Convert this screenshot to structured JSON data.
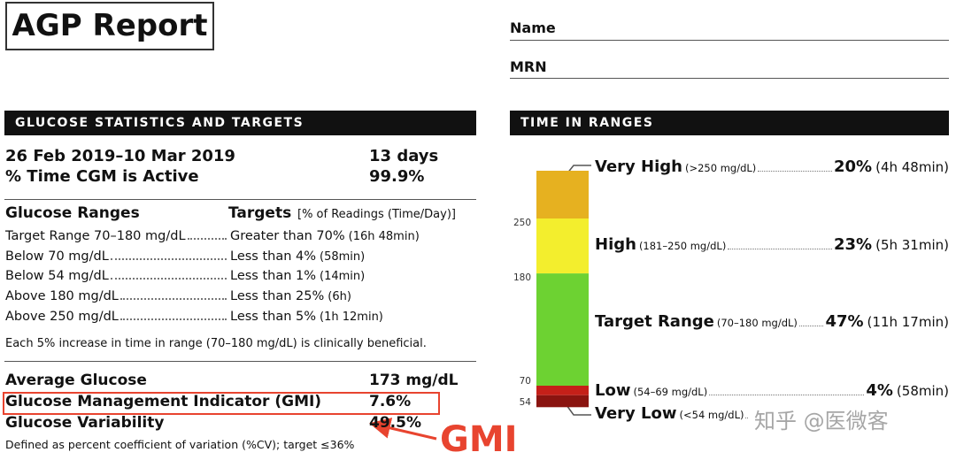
{
  "header": {
    "title": "AGP Report",
    "name_label": "Name",
    "mrn_label": "MRN"
  },
  "glucose_stats": {
    "heading": "GLUCOSE STATISTICS AND TARGETS",
    "date_range": "26 Feb 2019–10 Mar 2019",
    "days": "13 days",
    "cgm_active_label": "% Time CGM is Active",
    "cgm_active": "99.9%",
    "ranges_heading": "Glucose Ranges",
    "targets_heading": "Targets",
    "targets_note": "[% of Readings (Time/Day)]",
    "rows": [
      {
        "range": "Target Range 70–180 mg/dL",
        "target": "Greater than 70%",
        "time": "(16h 48min)"
      },
      {
        "range": "Below 70 mg/dL",
        "target": "Less than 4%",
        "time": "(58min)"
      },
      {
        "range": "Below 54 mg/dL",
        "target": "Less than 1%",
        "time": "(14min)"
      },
      {
        "range": "Above 180 mg/dL",
        "target": "Less than 25%",
        "time": "(6h)"
      },
      {
        "range": "Above 250 mg/dL",
        "target": "Less than 5%",
        "time": "(1h 12min)"
      }
    ],
    "note": "Each 5% increase in time in range (70–180 mg/dL) is clinically beneficial.",
    "metrics": [
      {
        "label": "Average Glucose",
        "value": "173 mg/dL"
      },
      {
        "label": "Glucose Management Indicator (GMI)",
        "value": "7.6%"
      },
      {
        "label": "Glucose Variability",
        "value": "49.5%"
      }
    ],
    "variability_note": "Defined as percent coefficient of variation (%CV); target ≤36%",
    "annotation": "GMI"
  },
  "time_in_ranges": {
    "heading": "TIME IN RANGES",
    "labels": [
      "Very High",
      "High",
      "Target Range",
      "Low",
      "Very Low"
    ],
    "ranges": [
      "(>250 mg/dL)",
      "(181–250 mg/dL)",
      "(70–180 mg/dL)",
      "(54–69 mg/dL)",
      "(<54 mg/dL)"
    ],
    "values": [
      20,
      23,
      47,
      4,
      5
    ],
    "value_labels": [
      "20%",
      "23%",
      "47%",
      "4%",
      null
    ],
    "durations": [
      "(4h 48min)",
      "(5h 31min)",
      "(11h 17min)",
      "(58min)",
      null
    ],
    "colors": [
      "#e6b120",
      "#f3ee2d",
      "#6dd232",
      "#c52019",
      "#8a1410"
    ],
    "thresholds": [
      250,
      180,
      70,
      54
    ]
  },
  "watermark": "知乎 @医微客"
}
